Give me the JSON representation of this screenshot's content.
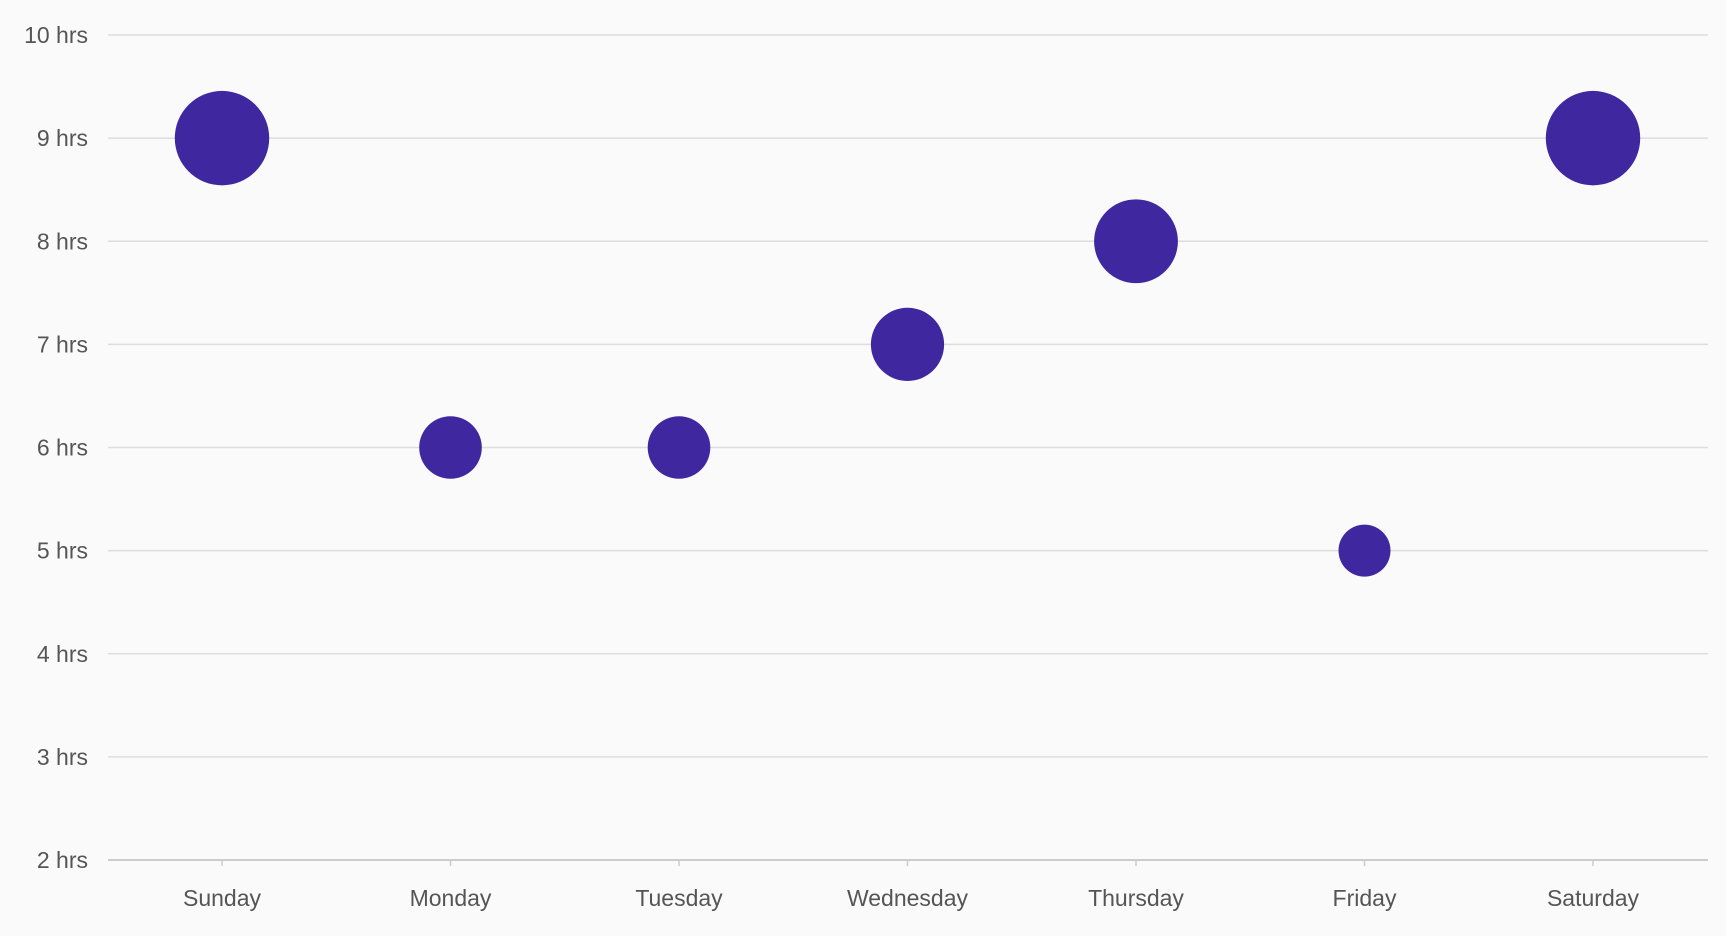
{
  "chart_data": {
    "type": "scatter",
    "title": "",
    "xlabel": "",
    "ylabel": "",
    "categories": [
      "Sunday",
      "Monday",
      "Tuesday",
      "Wednesday",
      "Thursday",
      "Friday",
      "Saturday"
    ],
    "values": [
      9,
      6,
      6,
      7,
      8,
      5,
      9
    ],
    "ylim": [
      2,
      10
    ],
    "y_ticks": [
      {
        "value": 10,
        "label": "10 hrs"
      },
      {
        "value": 9,
        "label": "9 hrs"
      },
      {
        "value": 8,
        "label": "8 hrs"
      },
      {
        "value": 7,
        "label": "7 hrs"
      },
      {
        "value": 6,
        "label": "6 hrs"
      },
      {
        "value": 5,
        "label": "5 hrs"
      },
      {
        "value": 4,
        "label": "4 hrs"
      },
      {
        "value": 3,
        "label": "3 hrs"
      },
      {
        "value": 2,
        "label": "2 hrs"
      }
    ],
    "bubble_size_encodes": "value",
    "grid": true,
    "legend": "none",
    "marker_color": "#3f27a0",
    "grid_color": "#dddddd",
    "background_color": "#fafafa"
  }
}
